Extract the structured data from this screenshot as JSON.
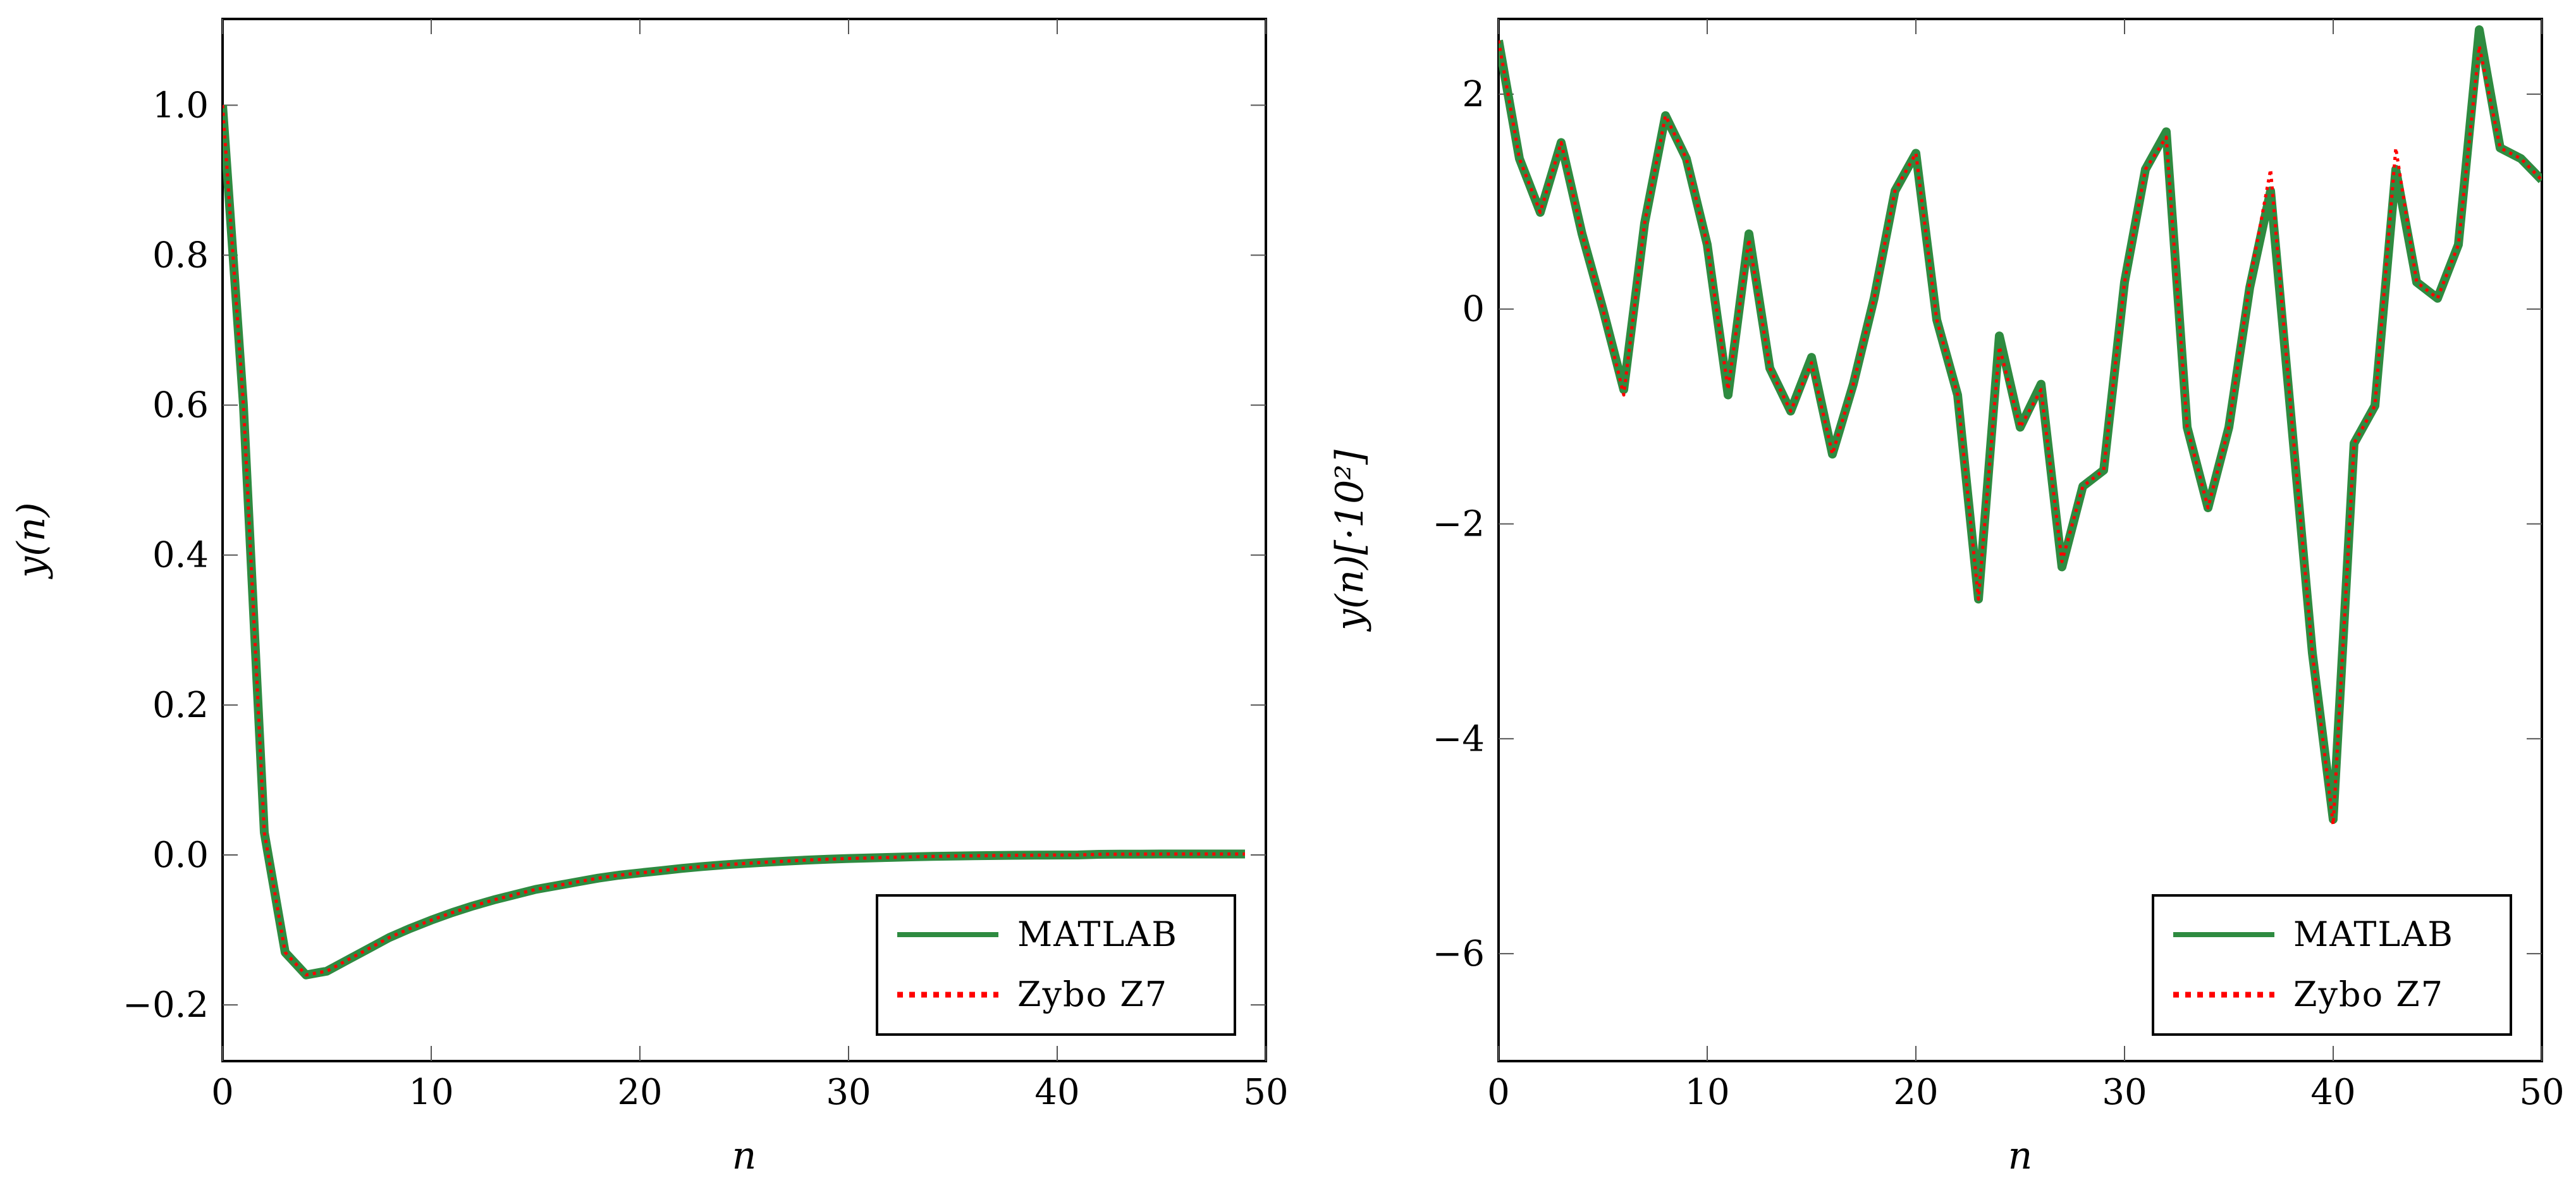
{
  "chart_data": [
    {
      "type": "line",
      "xlabel": "n",
      "ylabel": "y(n)",
      "xlim": [
        0,
        50
      ],
      "ylim": [
        -0.275,
        1.115
      ],
      "xticks": [
        0,
        10,
        20,
        30,
        40,
        50
      ],
      "xtick_labels": [
        "0",
        "10",
        "20",
        "30",
        "40",
        "50"
      ],
      "yticks": [
        -0.2,
        0.0,
        0.2,
        0.4,
        0.6,
        0.8,
        1.0
      ],
      "ytick_labels": [
        "−0.2",
        "0.0",
        "0.2",
        "0.4",
        "0.6",
        "0.8",
        "1.0"
      ],
      "legend_position": "bottom-right",
      "x": [
        0,
        1,
        2,
        3,
        4,
        5,
        6,
        7,
        8,
        9,
        10,
        11,
        12,
        13,
        14,
        15,
        16,
        17,
        18,
        19,
        20,
        21,
        22,
        23,
        24,
        25,
        26,
        27,
        28,
        29,
        30,
        31,
        32,
        33,
        34,
        35,
        36,
        37,
        38,
        39,
        40,
        41,
        42,
        43,
        44,
        45,
        46,
        47,
        48,
        49
      ],
      "series": [
        {
          "name": "MATLAB",
          "color": "#2e8b40",
          "style": "solid",
          "values": [
            1.0,
            0.6,
            0.03,
            -0.13,
            -0.16,
            -0.155,
            -0.14,
            -0.125,
            -0.11,
            -0.098,
            -0.087,
            -0.077,
            -0.068,
            -0.06,
            -0.053,
            -0.046,
            -0.041,
            -0.036,
            -0.031,
            -0.027,
            -0.024,
            -0.021,
            -0.018,
            -0.0155,
            -0.0133,
            -0.0114,
            -0.0097,
            -0.0082,
            -0.0069,
            -0.0058,
            -0.0048,
            -0.004,
            -0.0033,
            -0.0026,
            -0.002,
            -0.0015,
            -0.0011,
            -0.0008,
            -0.0005,
            -0.0003,
            -0.0001,
            0.0,
            0.0008,
            0.001,
            0.0011,
            0.0012,
            0.0012,
            0.0012,
            0.0012,
            0.0012
          ]
        },
        {
          "name": "Zybo Z7",
          "color": "#ff0000",
          "style": "dotted",
          "values": [
            1.0,
            0.6,
            0.03,
            -0.13,
            -0.16,
            -0.155,
            -0.14,
            -0.125,
            -0.11,
            -0.098,
            -0.087,
            -0.077,
            -0.068,
            -0.06,
            -0.053,
            -0.046,
            -0.041,
            -0.036,
            -0.031,
            -0.027,
            -0.024,
            -0.021,
            -0.018,
            -0.0155,
            -0.0133,
            -0.0114,
            -0.0097,
            -0.0082,
            -0.0069,
            -0.0058,
            -0.0048,
            -0.004,
            -0.0033,
            -0.0026,
            -0.002,
            -0.0015,
            -0.0011,
            -0.0008,
            -0.0005,
            -0.0003,
            -0.0001,
            0.0,
            0.0008,
            0.001,
            0.0011,
            0.0012,
            0.0012,
            0.0012,
            0.0012,
            0.0012
          ]
        }
      ]
    },
    {
      "type": "line",
      "xlabel": "n",
      "ylabel": "y(n)[·10²]",
      "xlim": [
        0,
        50
      ],
      "ylim": [
        -7.0,
        2.7
      ],
      "xticks": [
        0,
        10,
        20,
        30,
        40,
        50
      ],
      "xtick_labels": [
        "0",
        "10",
        "20",
        "30",
        "40",
        "50"
      ],
      "yticks": [
        -6,
        -4,
        -2,
        0,
        2
      ],
      "ytick_labels": [
        "−6",
        "−4",
        "−2",
        "0",
        "2"
      ],
      "legend_position": "bottom-right",
      "x": [
        0,
        1,
        2,
        3,
        4,
        5,
        6,
        7,
        8,
        9,
        10,
        11,
        12,
        13,
        14,
        15,
        16,
        17,
        18,
        19,
        20,
        21,
        22,
        23,
        24,
        25,
        26,
        27,
        28,
        29,
        30,
        31,
        32,
        33,
        34,
        35,
        36,
        37,
        38,
        39,
        40,
        41,
        42,
        43,
        44,
        45,
        46,
        47,
        48,
        49,
        50
      ],
      "series": [
        {
          "name": "MATLAB",
          "color": "#2e8b40",
          "style": "solid",
          "values": [
            2.5,
            1.4,
            0.9,
            1.55,
            0.7,
            0.0,
            -0.75,
            0.8,
            1.8,
            1.4,
            0.6,
            -0.8,
            0.7,
            -0.55,
            -0.95,
            -0.45,
            -1.35,
            -0.7,
            0.1,
            1.1,
            1.45,
            -0.1,
            -0.8,
            -2.7,
            -0.25,
            -1.1,
            -0.7,
            -2.4,
            -1.65,
            -1.5,
            0.25,
            1.3,
            1.65,
            -1.1,
            -1.85,
            -1.1,
            0.2,
            1.1,
            -1.05,
            -3.2,
            -4.75,
            -1.25,
            -0.9,
            1.3,
            0.25,
            0.1,
            0.6,
            2.6,
            1.5,
            1.4,
            1.2
          ]
        },
        {
          "name": "Zybo Z7",
          "color": "#ff0000",
          "style": "dotted",
          "values": [
            2.5,
            1.4,
            0.9,
            1.55,
            0.7,
            0.0,
            -0.8,
            0.8,
            1.8,
            1.4,
            0.6,
            -0.75,
            0.65,
            -0.55,
            -0.95,
            -0.5,
            -1.35,
            -0.7,
            0.1,
            1.1,
            1.45,
            -0.1,
            -0.8,
            -2.7,
            -0.35,
            -1.1,
            -0.75,
            -2.35,
            -1.65,
            -1.5,
            0.25,
            1.3,
            1.6,
            -1.1,
            -1.85,
            -1.1,
            0.25,
            1.3,
            -1.0,
            -3.2,
            -4.8,
            -1.25,
            -0.9,
            1.5,
            0.25,
            0.1,
            0.6,
            2.45,
            1.5,
            1.4,
            1.2
          ]
        }
      ]
    }
  ]
}
